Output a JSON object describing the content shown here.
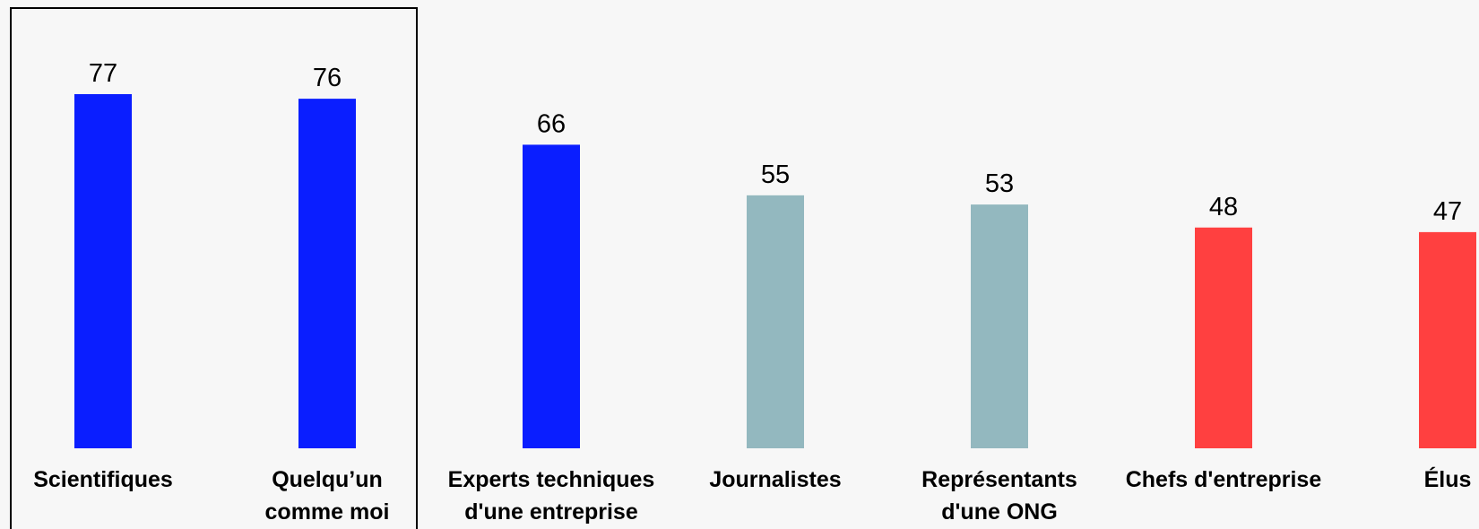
{
  "chart_data": {
    "type": "bar",
    "categories": [
      [
        "Scientifiques"
      ],
      [
        "Quelqu’un",
        "comme moi"
      ],
      [
        "Experts techniques",
        "d'une entreprise"
      ],
      [
        "Journalistes"
      ],
      [
        "Représentants",
        "d'une ONG"
      ],
      [
        "Chefs d'entreprise"
      ],
      [
        "Élus"
      ]
    ],
    "values": [
      77,
      76,
      66,
      55,
      53,
      48,
      47
    ],
    "colors": [
      "#0a1eff",
      "#0a1eff",
      "#0a1eff",
      "#93b8bf",
      "#93b8bf",
      "#ff4040",
      "#ff4040"
    ],
    "highlighted_categories": [
      "Scientifiques",
      "Quelqu’un comme moi"
    ],
    "title": "",
    "xlabel": "",
    "ylabel": "",
    "ylim": [
      0,
      77
    ],
    "grid": false,
    "legend": "none"
  }
}
